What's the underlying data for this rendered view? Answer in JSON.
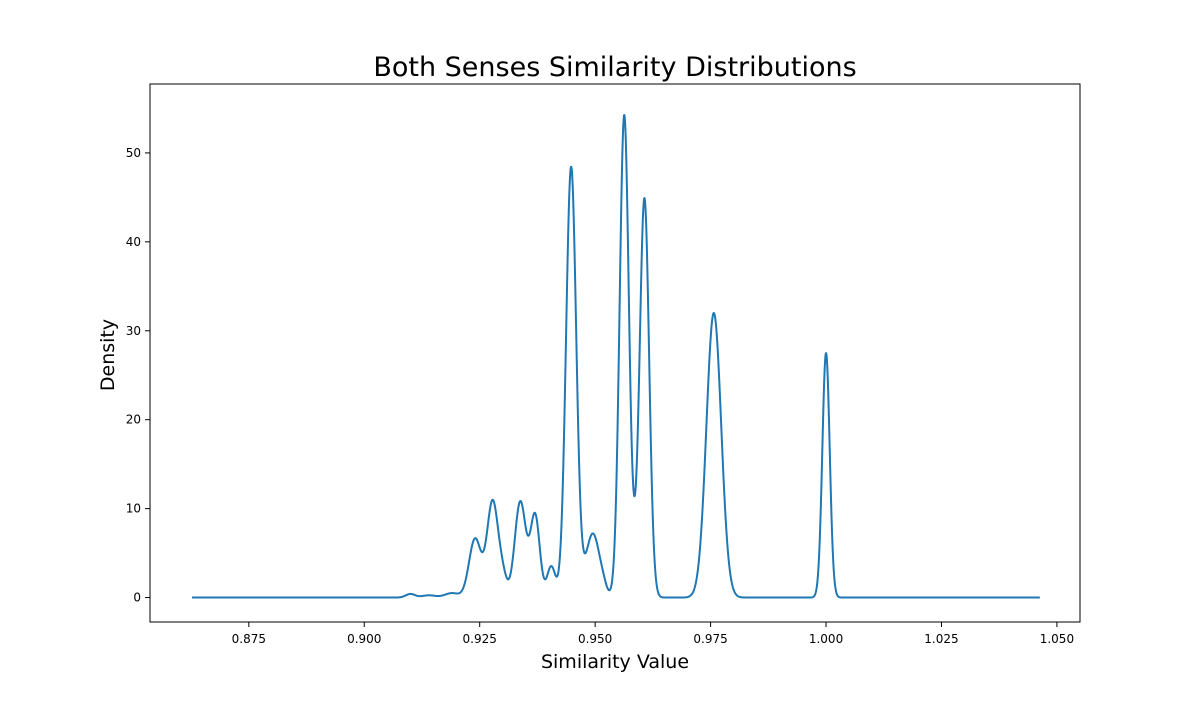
{
  "chart_data": {
    "type": "line",
    "title": "Both Senses Similarity Distributions",
    "xlabel": "Similarity Value",
    "ylabel": "Density",
    "xlim": [
      0.8536,
      1.055
    ],
    "ylim": [
      -2.75,
      57.75
    ],
    "xticks": [
      0.875,
      0.9,
      0.925,
      0.95,
      0.975,
      1.0,
      1.025,
      1.05
    ],
    "xtick_labels": [
      "0.875",
      "0.900",
      "0.925",
      "0.950",
      "0.975",
      "1.000",
      "1.025",
      "1.050"
    ],
    "yticks": [
      0,
      10,
      20,
      30,
      40,
      50
    ],
    "ytick_labels": [
      "0",
      "10",
      "20",
      "30",
      "40",
      "50"
    ],
    "grid": false,
    "color": "#1f77b4",
    "x_range": [
      0.8627,
      1.0463
    ],
    "components": [
      {
        "mu": 0.91,
        "sigma": 0.001,
        "amp": 0.4
      },
      {
        "mu": 0.914,
        "sigma": 0.0015,
        "amp": 0.25
      },
      {
        "mu": 0.919,
        "sigma": 0.0015,
        "amp": 0.5
      },
      {
        "mu": 0.924,
        "sigma": 0.0013,
        "amp": 6.6
      },
      {
        "mu": 0.9278,
        "sigma": 0.0012,
        "amp": 10.8
      },
      {
        "mu": 0.93,
        "sigma": 0.0009,
        "amp": 2.0
      },
      {
        "mu": 0.9338,
        "sigma": 0.0012,
        "amp": 10.8
      },
      {
        "mu": 0.937,
        "sigma": 0.001,
        "amp": 9.2
      },
      {
        "mu": 0.9405,
        "sigma": 0.0009,
        "amp": 3.5
      },
      {
        "mu": 0.9448,
        "sigma": 0.0011,
        "amp": 48.4
      },
      {
        "mu": 0.9495,
        "sigma": 0.0015,
        "amp": 7.2
      },
      {
        "mu": 0.9518,
        "sigma": 0.0007,
        "amp": 0.5
      },
      {
        "mu": 0.9563,
        "sigma": 0.001,
        "amp": 54.2
      },
      {
        "mu": 0.959,
        "sigma": 0.001,
        "amp": 3.0
      },
      {
        "mu": 0.9607,
        "sigma": 0.001,
        "amp": 44.2
      },
      {
        "mu": 0.9757,
        "sigma": 0.0016,
        "amp": 32.0
      },
      {
        "mu": 1.0,
        "sigma": 0.0008,
        "amp": 27.5
      }
    ]
  }
}
